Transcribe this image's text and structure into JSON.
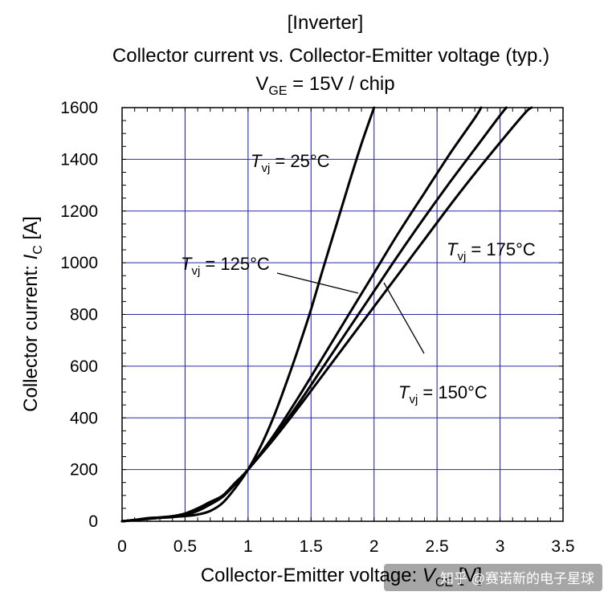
{
  "chart_data": {
    "type": "line",
    "title_lines": [
      "[Inverter]",
      "Collector current vs. Collector-Emitter voltage (typ.)"
    ],
    "subtitle": {
      "prefix": "V",
      "subscript": "GE",
      "suffix": " = 15V / chip"
    },
    "xlabel": {
      "prefix": "Collector-Emitter voltage: ",
      "var": "V",
      "subscript": "CE",
      "suffix": " [V]"
    },
    "ylabel": {
      "prefix": "Collector current: ",
      "var": "I",
      "subscript": "C",
      "suffix": " [A]"
    },
    "xlim": [
      0,
      3.5
    ],
    "ylim": [
      0,
      1600
    ],
    "x_ticks": [
      0,
      0.5,
      1,
      1.5,
      2,
      2.5,
      3,
      3.5
    ],
    "x_tick_labels": [
      "0",
      "0.5",
      "1",
      "1.5",
      "2",
      "2.5",
      "3",
      "3.5"
    ],
    "y_ticks": [
      0,
      200,
      400,
      600,
      800,
      1000,
      1200,
      1400,
      1600
    ],
    "y_tick_labels": [
      "0",
      "200",
      "400",
      "600",
      "800",
      "1000",
      "1200",
      "1400",
      "1600"
    ],
    "grid": true,
    "series": [
      {
        "name": "Tvj = 25°C",
        "x": [
          0,
          0.1,
          0.2,
          0.3,
          0.4,
          0.5,
          0.6,
          0.7,
          0.8,
          0.9,
          1.0,
          1.1,
          1.2,
          1.3,
          1.4,
          1.5,
          1.6,
          1.7,
          1.8,
          1.9,
          2.0
        ],
        "y": [
          0,
          5,
          12,
          15,
          17,
          20,
          26,
          40,
          72,
          130,
          200,
          290,
          400,
          530,
          670,
          820,
          985,
          1145,
          1305,
          1460,
          1600
        ]
      },
      {
        "name": "Tvj = 125°C",
        "x": [
          0,
          0.1,
          0.2,
          0.3,
          0.4,
          0.5,
          0.6,
          0.7,
          0.8,
          0.9,
          1.0,
          1.2,
          1.4,
          1.6,
          1.8,
          2.0,
          2.2,
          2.4,
          2.6,
          2.8,
          2.85
        ],
        "y": [
          0,
          5,
          10,
          15,
          20,
          30,
          50,
          75,
          100,
          150,
          200,
          330,
          480,
          640,
          800,
          960,
          1120,
          1270,
          1420,
          1560,
          1600
        ]
      },
      {
        "name": "Tvj = 150°C",
        "x": [
          0,
          0.1,
          0.2,
          0.3,
          0.4,
          0.5,
          0.6,
          0.7,
          0.8,
          0.9,
          1.0,
          1.2,
          1.4,
          1.6,
          1.8,
          2.0,
          2.2,
          2.4,
          2.6,
          2.8,
          3.0,
          3.05
        ],
        "y": [
          0,
          5,
          10,
          14,
          18,
          27,
          45,
          70,
          98,
          148,
          200,
          320,
          455,
          600,
          745,
          890,
          1035,
          1175,
          1310,
          1440,
          1570,
          1600
        ]
      },
      {
        "name": "Tvj = 175°C",
        "x": [
          0,
          0.1,
          0.2,
          0.3,
          0.4,
          0.5,
          0.6,
          0.7,
          0.8,
          0.9,
          1.0,
          1.2,
          1.4,
          1.6,
          1.8,
          2.0,
          2.2,
          2.4,
          2.6,
          2.8,
          3.0,
          3.2,
          3.25
        ],
        "y": [
          0,
          5,
          9,
          13,
          16,
          24,
          40,
          65,
          95,
          145,
          200,
          315,
          440,
          570,
          700,
          830,
          960,
          1090,
          1220,
          1345,
          1465,
          1580,
          1600
        ]
      }
    ],
    "annotations": [
      {
        "var": "T",
        "subscript": "vj",
        "suffix": " = 25°C"
      },
      {
        "var": "T",
        "subscript": "vj",
        "suffix": " = 125°C"
      },
      {
        "var": "T",
        "subscript": "vj",
        "suffix": " = 175°C"
      },
      {
        "var": "T",
        "subscript": "vj",
        "suffix": " = 150°C"
      }
    ]
  },
  "watermark": "知乎 @赛诺新的电子星球"
}
